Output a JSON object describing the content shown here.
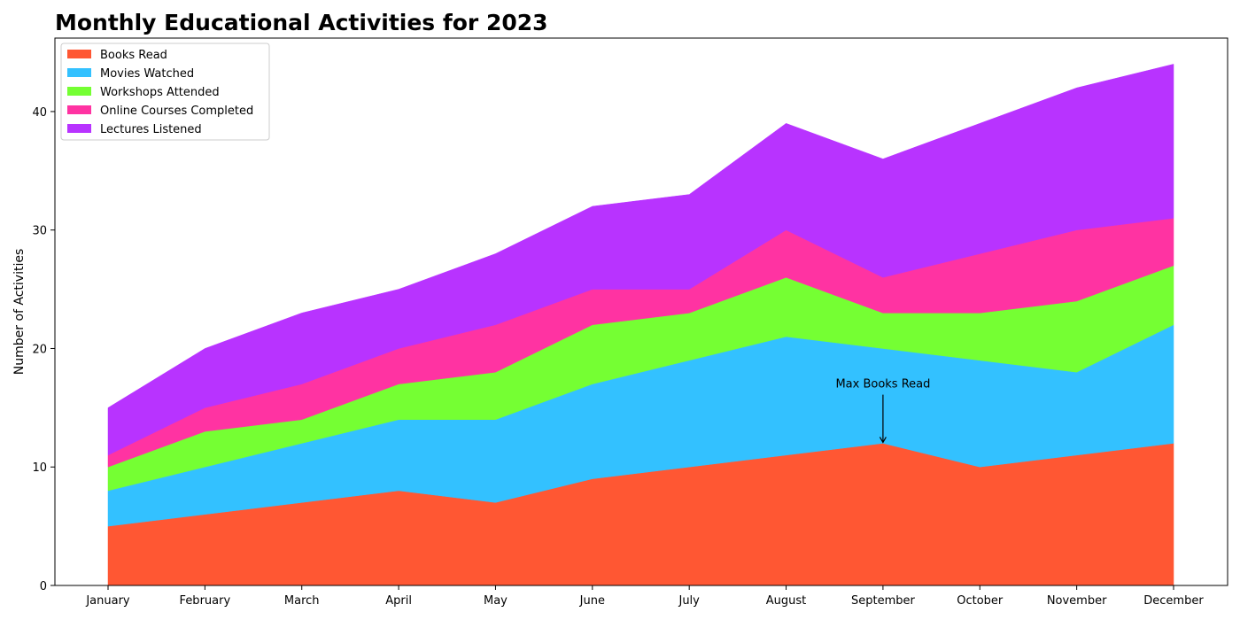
{
  "chart_data": {
    "type": "area",
    "stacked": true,
    "title": "Monthly Educational Activities for 2023",
    "xlabel": "",
    "ylabel": "Number of Activities",
    "categories": [
      "January",
      "February",
      "March",
      "April",
      "May",
      "June",
      "July",
      "August",
      "September",
      "October",
      "November",
      "December"
    ],
    "ylim": [
      0,
      46.2
    ],
    "yticks": [
      0,
      10,
      20,
      30,
      40
    ],
    "grid": false,
    "legend_position": "top-left",
    "series": [
      {
        "name": "Books Read",
        "color": "#ff5733",
        "values": [
          5,
          6,
          7,
          8,
          7,
          9,
          10,
          11,
          12,
          10,
          11,
          12
        ]
      },
      {
        "name": "Movies Watched",
        "color": "#33c1ff",
        "values": [
          3,
          4,
          5,
          6,
          7,
          8,
          9,
          10,
          8,
          9,
          7,
          10
        ]
      },
      {
        "name": "Workshops Attended",
        "color": "#75ff33",
        "values": [
          2,
          3,
          2,
          3,
          4,
          5,
          4,
          5,
          3,
          4,
          6,
          5
        ]
      },
      {
        "name": "Online Courses Completed",
        "color": "#ff33a2",
        "values": [
          1,
          2,
          3,
          3,
          4,
          3,
          2,
          4,
          3,
          5,
          6,
          4
        ]
      },
      {
        "name": "Lectures Listened",
        "color": "#b833ff",
        "values": [
          4,
          5,
          6,
          5,
          6,
          7,
          8,
          9,
          10,
          11,
          12,
          13
        ]
      }
    ],
    "annotation": {
      "text": "Max Books Read",
      "category": "September",
      "value": 12,
      "text_value": 17
    }
  }
}
